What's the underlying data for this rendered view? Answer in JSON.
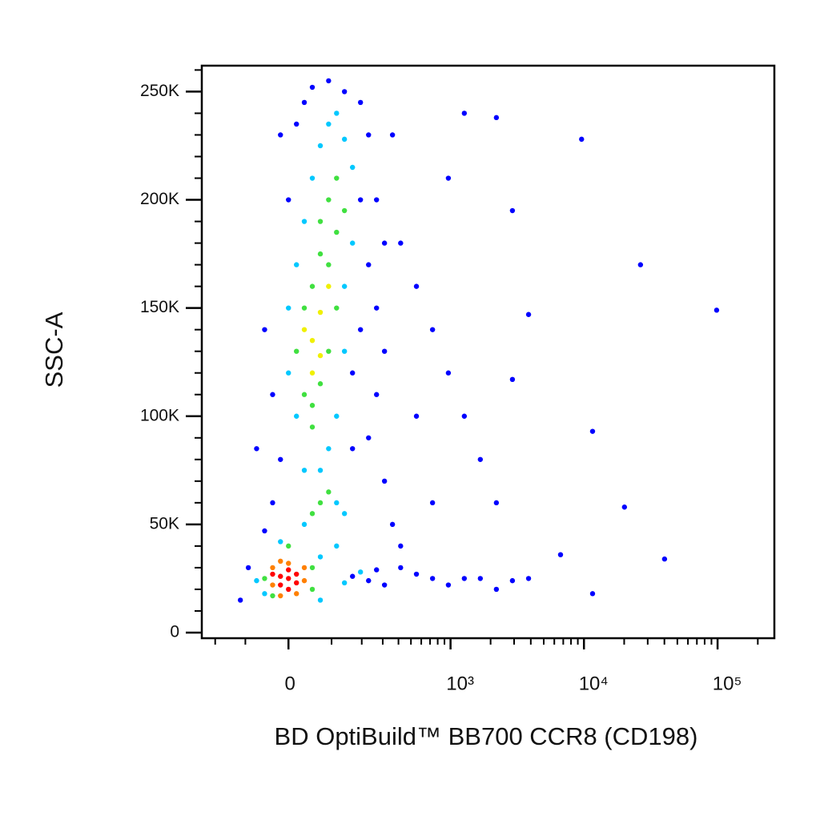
{
  "chart_data": {
    "type": "scatter",
    "xlabel": "BD OptiBuild™ BB700 CCR8 (CD198)",
    "ylabel": "SSC-A",
    "xscale": {
      "type": "asinh",
      "cofactor": 123
    },
    "xlim": [
      -260,
      266000
    ],
    "ylim": [
      -2600,
      262000
    ],
    "xticks": [
      0,
      {
        "value": 1000,
        "label": "10³"
      },
      {
        "value": 10000,
        "label": "10⁴"
      },
      {
        "value": 100000,
        "label": "10⁵"
      }
    ],
    "xminor": [
      -200,
      -100,
      100,
      200,
      300,
      400,
      500,
      600,
      700,
      800,
      900,
      2000,
      3000,
      4000,
      5000,
      6000,
      7000,
      8000,
      9000,
      20000,
      30000,
      40000,
      50000,
      60000,
      70000,
      80000,
      90000,
      200000
    ],
    "yticks": [
      0,
      {
        "value": 50000,
        "label": "50K"
      },
      {
        "value": 100000,
        "label": "100K"
      },
      {
        "value": 150000,
        "label": "150K"
      },
      {
        "value": 200000,
        "label": "200K"
      },
      {
        "value": 250000,
        "label": "250K"
      }
    ],
    "yminor": [
      10000,
      20000,
      30000,
      40000,
      60000,
      70000,
      80000,
      90000,
      110000,
      120000,
      130000,
      140000,
      160000,
      170000,
      180000,
      190000,
      210000,
      220000,
      230000,
      240000,
      260000
    ],
    "series": [
      {
        "color": "#0000ff",
        "x": [
          -17,
          -34,
          -52,
          -71,
          -92,
          -114,
          -52,
          0,
          17,
          34,
          52,
          92,
          138,
          195,
          229,
          195,
          229,
          267,
          310,
          267,
          229,
          310,
          359,
          416,
          551,
          731,
          963,
          1270,
          1675,
          2210,
          2915,
          3850,
          359,
          416,
          551,
          731,
          963,
          1270,
          1675,
          2210,
          963,
          1270,
          2210,
          2915,
          6680,
          11600,
          11600,
          20100,
          26500,
          40100,
          98400,
          9600,
          3850,
          2915,
          165,
          229,
          267,
          310,
          416,
          195,
          267,
          -17,
          165,
          310,
          551,
          731,
          165,
          -34
        ],
        "values": [
          80000,
          110000,
          140000,
          85000,
          30000,
          15000,
          47000,
          200000,
          235000,
          245000,
          252000,
          255000,
          250000,
          245000,
          230000,
          200000,
          170000,
          150000,
          130000,
          110000,
          90000,
          70000,
          50000,
          40000,
          27000,
          25000,
          22000,
          25000,
          25000,
          20000,
          24000,
          25000,
          230000,
          180000,
          160000,
          140000,
          120000,
          100000,
          80000,
          60000,
          210000,
          240000,
          238000,
          195000,
          36000,
          93000,
          18000,
          58000,
          170000,
          34000,
          149000,
          228000,
          147000,
          117000,
          26000,
          24000,
          29000,
          22000,
          30000,
          140000,
          200000,
          230000,
          120000,
          180000,
          100000,
          60000,
          85000,
          60000
        ]
      },
      {
        "color": "#00c8ff",
        "x": [
          17,
          0,
          0,
          17,
          34,
          52,
          71,
          92,
          114,
          138,
          165,
          165,
          138,
          138,
          114,
          92,
          71,
          34,
          114,
          34,
          138,
          -52,
          -71,
          71,
          71,
          -17,
          114,
          195,
          138
        ],
        "values": [
          100000,
          120000,
          150000,
          170000,
          190000,
          210000,
          225000,
          235000,
          240000,
          228000,
          215000,
          180000,
          160000,
          130000,
          100000,
          85000,
          75000,
          75000,
          60000,
          50000,
          55000,
          18000,
          24000,
          15000,
          35000,
          42000,
          40000,
          28000,
          23000
        ]
      },
      {
        "color": "#40e040",
        "x": [
          34,
          52,
          71,
          92,
          114,
          92,
          114,
          71,
          52,
          34,
          17,
          92,
          71,
          114,
          138,
          52,
          -34,
          52,
          52,
          -52,
          0,
          71,
          92,
          52
        ],
        "values": [
          110000,
          105000,
          115000,
          130000,
          150000,
          170000,
          185000,
          175000,
          160000,
          150000,
          130000,
          200000,
          190000,
          210000,
          195000,
          95000,
          17000,
          20000,
          30000,
          25000,
          40000,
          60000,
          65000,
          55000
        ]
      },
      {
        "color": "#f0f000",
        "x": [
          52,
          71,
          34,
          71,
          52,
          92
        ],
        "values": [
          135000,
          128000,
          140000,
          148000,
          120000,
          160000
        ]
      },
      {
        "color": "#ff8000",
        "x": [
          -34,
          34,
          0,
          -17,
          34,
          -34,
          17,
          -17
        ],
        "values": [
          22000,
          24000,
          32000,
          33000,
          30000,
          30000,
          18000,
          17000
        ]
      },
      {
        "color": "#ff0000",
        "x": [
          -17,
          0,
          17,
          0,
          -17,
          17,
          0,
          -34
        ],
        "values": [
          26000,
          25000,
          27000,
          29000,
          22000,
          23000,
          20000,
          27000
        ]
      }
    ]
  }
}
